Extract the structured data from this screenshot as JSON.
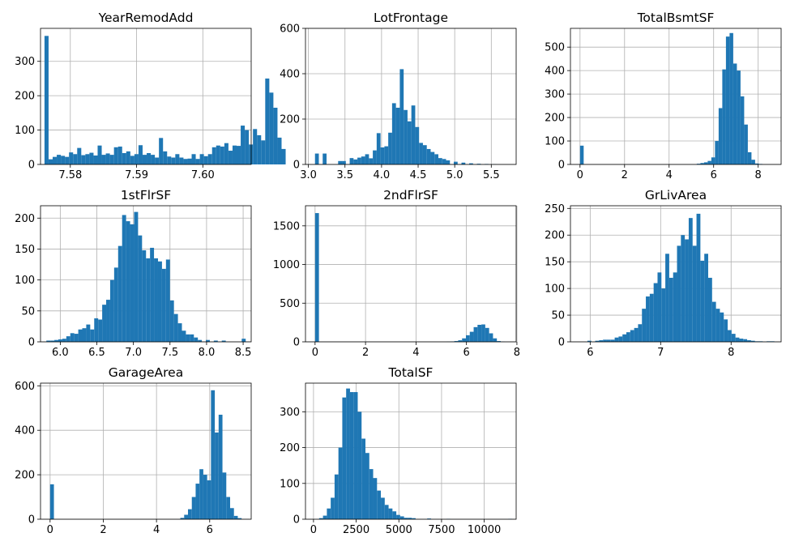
{
  "figure": {
    "bar_color": "#1f77b4",
    "grid_color": "#b0b0b0",
    "axis_color": "#000000"
  },
  "chart_data": [
    {
      "type": "histogram",
      "title": "YearRemodAdd",
      "xlim": [
        7.5755,
        7.6073
      ],
      "ylim": [
        0,
        396
      ],
      "xticks": [
        7.58,
        7.59,
        7.6
      ],
      "xtick_labels": [
        "7.58",
        "7.59",
        "7.60"
      ],
      "yticks": [
        0,
        100,
        200,
        300
      ],
      "ytick_labels": [
        "0",
        "100",
        "200",
        "300"
      ],
      "bin_start": 7.5761,
      "bin_width": 0.000617,
      "values": [
        374,
        15,
        22,
        28,
        25,
        22,
        35,
        30,
        48,
        27,
        30,
        34,
        26,
        55,
        28,
        32,
        28,
        50,
        52,
        33,
        38,
        25,
        30,
        56,
        28,
        33,
        28,
        20,
        77,
        38,
        23,
        20,
        30,
        20,
        16,
        17,
        30,
        16,
        30,
        24,
        30,
        50,
        55,
        52,
        62,
        40,
        55,
        54,
        113,
        100,
        58,
        103,
        85,
        70,
        250,
        209,
        165,
        78,
        45,
        0
      ]
    },
    {
      "type": "histogram",
      "title": "LotFrontage",
      "xlim": [
        2.96,
        5.84
      ],
      "ylim": [
        0,
        600
      ],
      "xticks": [
        3.0,
        3.5,
        4.0,
        4.5,
        5.0,
        5.5
      ],
      "xtick_labels": [
        "3.0",
        "3.5",
        "4.0",
        "4.5",
        "5.0",
        "5.5"
      ],
      "yticks": [
        0,
        200,
        400,
        600
      ],
      "ytick_labels": [
        "0",
        "200",
        "400",
        "600"
      ],
      "bin_start": 3.09,
      "bin_width": 0.0527,
      "values": [
        48,
        0,
        48,
        0,
        0,
        0,
        15,
        15,
        0,
        28,
        22,
        30,
        35,
        45,
        27,
        62,
        138,
        75,
        80,
        140,
        270,
        250,
        420,
        240,
        190,
        260,
        165,
        95,
        85,
        68,
        55,
        45,
        28,
        24,
        18,
        0,
        12,
        0,
        8,
        0,
        5,
        0,
        3,
        0,
        2,
        0,
        1,
        0,
        0,
        0,
        0
      ]
    },
    {
      "type": "histogram",
      "title": "TotalBsmtSF",
      "xlim": [
        -0.43,
        9.03
      ],
      "ylim": [
        0,
        580
      ],
      "xticks": [
        0,
        2,
        4,
        6,
        8
      ],
      "xtick_labels": [
        "0",
        "2",
        "4",
        "6",
        "8"
      ],
      "yticks": [
        0,
        100,
        200,
        300,
        400,
        500
      ],
      "ytick_labels": [
        "0",
        "100",
        "200",
        "300",
        "400",
        "500"
      ],
      "bin_start": 0.0,
      "bin_width": 0.1638,
      "values": [
        80,
        0,
        0,
        0,
        0,
        0,
        0,
        0,
        0,
        0,
        0,
        0,
        0,
        0,
        0,
        0,
        0,
        0,
        0,
        0,
        0,
        0,
        0,
        0,
        0,
        0,
        0,
        0,
        0,
        0,
        0,
        0,
        3,
        6,
        9,
        15,
        30,
        100,
        240,
        405,
        545,
        560,
        430,
        400,
        290,
        170,
        52,
        20,
        4,
        2,
        0,
        0
      ]
    },
    {
      "type": "histogram",
      "title": "1stFlrSF",
      "xlim": [
        5.73,
        8.61
      ],
      "ylim": [
        0,
        220
      ],
      "xticks": [
        6.0,
        6.5,
        7.0,
        7.5,
        8.0,
        8.5
      ],
      "xtick_labels": [
        "6.0",
        "6.5",
        "7.0",
        "7.5",
        "8.0",
        "8.5"
      ],
      "yticks": [
        0,
        50,
        100,
        150,
        200
      ],
      "ytick_labels": [
        "0",
        "50",
        "100",
        "150",
        "200"
      ],
      "bin_start": 5.81,
      "bin_width": 0.0545,
      "values": [
        2,
        2,
        3,
        4,
        5,
        9,
        14,
        13,
        20,
        22,
        28,
        20,
        38,
        36,
        60,
        68,
        100,
        120,
        155,
        205,
        195,
        190,
        210,
        172,
        148,
        135,
        152,
        135,
        130,
        118,
        133,
        67,
        45,
        30,
        18,
        12,
        12,
        7,
        3,
        0,
        3,
        0,
        2,
        0,
        2,
        0,
        0,
        0,
        0,
        5
      ]
    },
    {
      "type": "histogram",
      "title": "2ndFlrSF",
      "xlim": [
        -0.38,
        7.97
      ],
      "ylim": [
        0,
        1760
      ],
      "xticks": [
        0,
        2,
        4,
        6,
        8
      ],
      "xtick_labels": [
        "0",
        "2",
        "4",
        "6",
        "8"
      ],
      "yticks": [
        0,
        500,
        1000,
        1500
      ],
      "ytick_labels": [
        "0",
        "500",
        "1000",
        "1500"
      ],
      "bin_start": 0.0,
      "bin_width": 0.1533,
      "values": [
        1665,
        0,
        0,
        0,
        0,
        0,
        0,
        0,
        0,
        0,
        0,
        0,
        0,
        0,
        0,
        0,
        0,
        0,
        0,
        0,
        0,
        0,
        0,
        0,
        0,
        0,
        0,
        0,
        0,
        0,
        0,
        0,
        0,
        0,
        2,
        5,
        10,
        20,
        45,
        85,
        130,
        190,
        220,
        225,
        180,
        110,
        45,
        10,
        3,
        0
      ]
    },
    {
      "type": "histogram",
      "title": "GrLivArea",
      "xlim": [
        5.72,
        8.71
      ],
      "ylim": [
        0,
        255
      ],
      "xticks": [
        6,
        7,
        8
      ],
      "xtick_labels": [
        "6",
        "7",
        "8"
      ],
      "yticks": [
        0,
        50,
        100,
        150,
        200,
        250
      ],
      "ytick_labels": [
        "0",
        "50",
        "100",
        "150",
        "200",
        "250"
      ],
      "bin_start": 5.85,
      "bin_width": 0.0553,
      "values": [
        0,
        0,
        2,
        0,
        2,
        3,
        4,
        4,
        4,
        8,
        10,
        14,
        18,
        22,
        26,
        33,
        62,
        85,
        90,
        110,
        130,
        100,
        165,
        120,
        130,
        180,
        200,
        192,
        232,
        180,
        240,
        152,
        165,
        120,
        75,
        62,
        55,
        42,
        22,
        15,
        8,
        6,
        5,
        3,
        2,
        1,
        1,
        0,
        1,
        1
      ]
    },
    {
      "type": "histogram",
      "title": "GarageArea",
      "xlim": [
        -0.36,
        7.56
      ],
      "ylim": [
        0,
        612
      ],
      "xticks": [
        0,
        2,
        4,
        6
      ],
      "xtick_labels": [
        "0",
        "2",
        "4",
        "6"
      ],
      "yticks": [
        0,
        200,
        400,
        600
      ],
      "ytick_labels": [
        "0",
        "200",
        "400",
        "600"
      ],
      "bin_start": 0.0,
      "bin_width": 0.144,
      "values": [
        157,
        0,
        0,
        0,
        0,
        0,
        0,
        0,
        0,
        0,
        0,
        0,
        0,
        0,
        0,
        0,
        0,
        0,
        0,
        0,
        0,
        0,
        0,
        0,
        0,
        0,
        0,
        0,
        0,
        0,
        0,
        0,
        0,
        0,
        6,
        20,
        45,
        100,
        160,
        225,
        200,
        175,
        580,
        390,
        470,
        210,
        100,
        50,
        15,
        5
      ]
    },
    {
      "type": "histogram",
      "title": "TotalSF",
      "xlim": [
        -470,
        11870
      ],
      "ylim": [
        0,
        380
      ],
      "xticks": [
        0,
        2500,
        5000,
        7500,
        10000
      ],
      "xtick_labels": [
        "0",
        "2500",
        "5000",
        "7500",
        "10000"
      ],
      "yticks": [
        0,
        100,
        200,
        300
      ],
      "ytick_labels": [
        "0",
        "100",
        "200",
        "300"
      ],
      "bin_start": 330,
      "bin_width": 226,
      "values": [
        3,
        10,
        30,
        60,
        125,
        200,
        340,
        365,
        355,
        355,
        300,
        225,
        185,
        140,
        115,
        80,
        60,
        40,
        30,
        22,
        12,
        8,
        4,
        4,
        3,
        0,
        0,
        0,
        2,
        0,
        0,
        0,
        0,
        1,
        0,
        0,
        0,
        0,
        0,
        0,
        0,
        0,
        0,
        0,
        0,
        0,
        0,
        0,
        0,
        1
      ]
    }
  ]
}
